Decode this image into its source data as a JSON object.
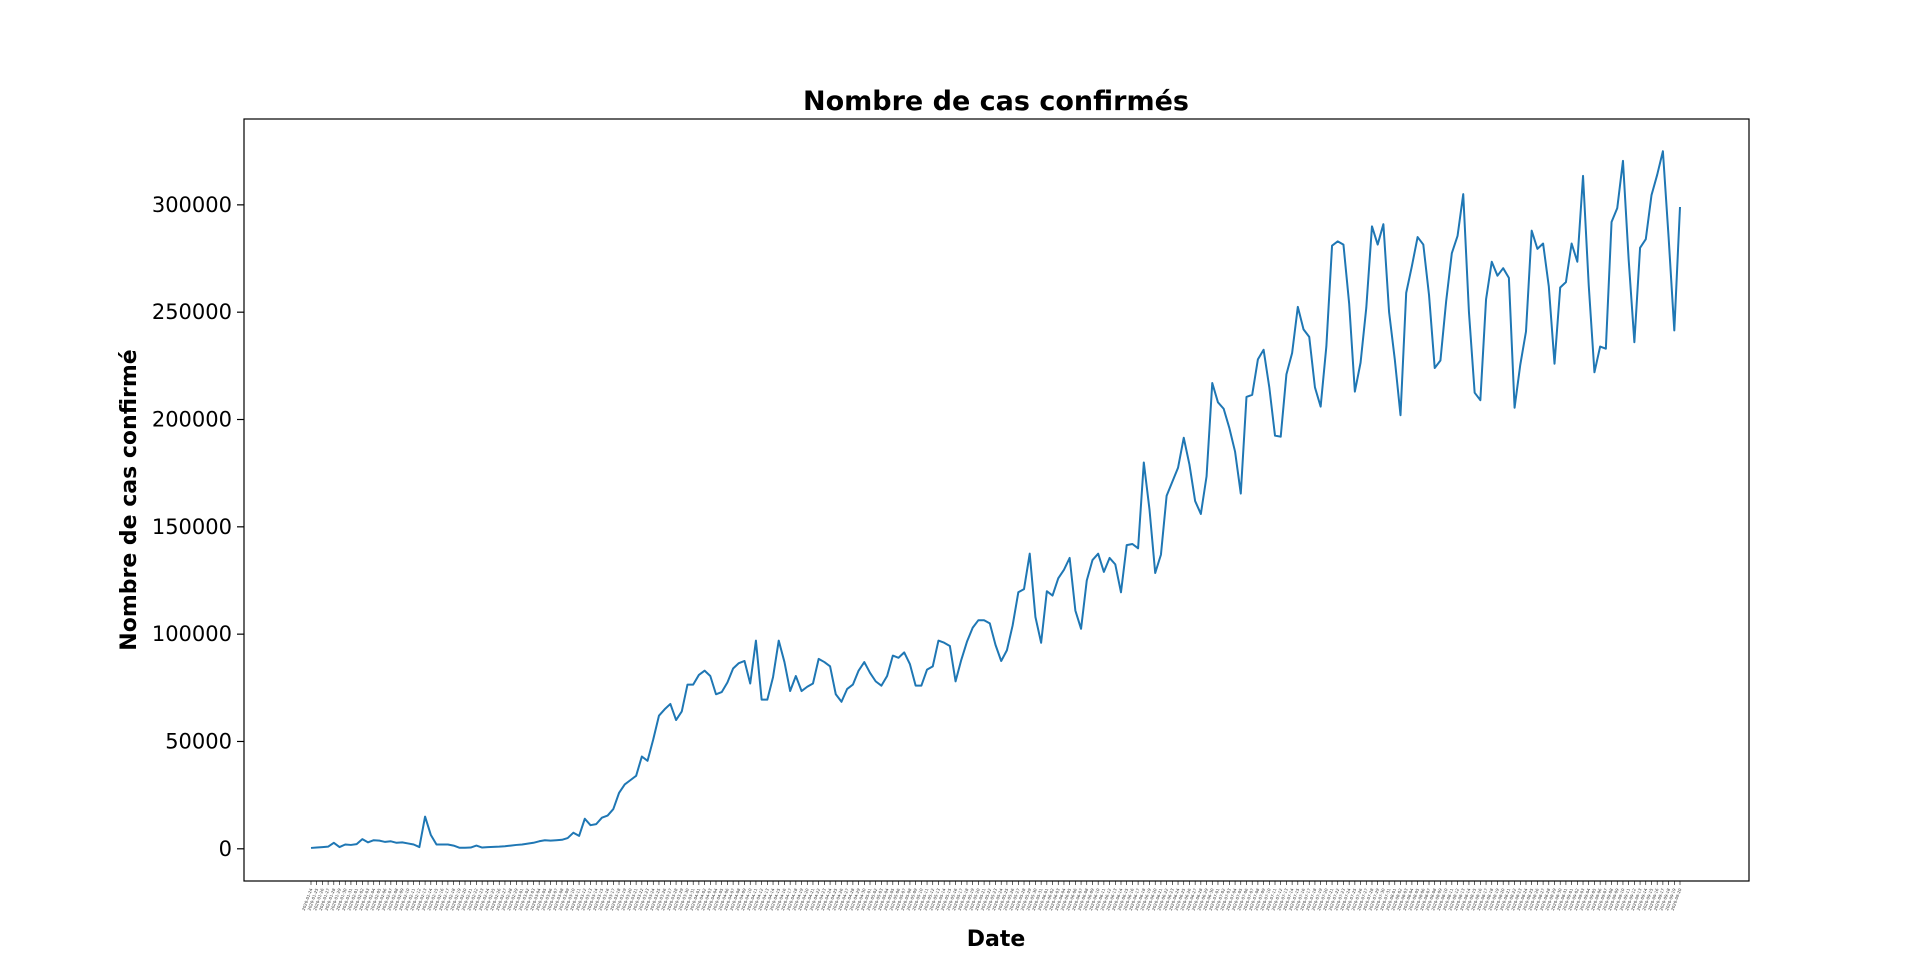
{
  "chart_data": {
    "type": "line",
    "title": "Nombre de cas confirmés",
    "xlabel": "Date",
    "ylabel": "Nombre de cas confirmé",
    "ylim": [
      -15000,
      340000
    ],
    "yticks": [
      0,
      50000,
      100000,
      150000,
      200000,
      250000,
      300000
    ],
    "grid": false,
    "line_color": "#1f77b4",
    "x_start_label": "2020-01-24",
    "x_end_label": "2020-12-18",
    "series": [
      {
        "values": [
          400,
          600,
          800,
          1000,
          2800,
          800,
          2000,
          1800,
          2200,
          4500,
          3000,
          4000,
          3800,
          3200,
          3500,
          2800,
          3000,
          2500,
          2000,
          800,
          15000,
          6500,
          2000,
          2000,
          2000,
          1500,
          500,
          500,
          600,
          1500,
          600,
          800,
          900,
          1000,
          1200,
          1500,
          1800,
          2000,
          2400,
          2800,
          3500,
          4000,
          3800,
          4000,
          4200,
          5000,
          7500,
          6000,
          14000,
          11000,
          11500,
          14500,
          15500,
          18500,
          26000,
          30000,
          32000,
          34000,
          43000,
          41000,
          51000,
          62000,
          65000,
          67500,
          60000,
          64000,
          76500,
          76500,
          81000,
          83000,
          80500,
          72000,
          73000,
          77500,
          84000,
          86500,
          87500,
          77000,
          97000,
          69500,
          69500,
          80000,
          97000,
          87000,
          73500,
          80500,
          73500,
          75500,
          77000,
          88500,
          87000,
          85000,
          72000,
          68500,
          74500,
          76500,
          83000,
          87000,
          82000,
          78000,
          76000,
          80500,
          90000,
          89000,
          91500,
          86000,
          76000,
          76000,
          83500,
          85000,
          97000,
          96000,
          94500,
          78000,
          88000,
          96500,
          103000,
          106500,
          106500,
          105000,
          95000,
          87500,
          92500,
          104000,
          119500,
          121000,
          137500,
          108000,
          96000,
          120000,
          118000,
          126000,
          130000,
          135500,
          111000,
          102500,
          125000,
          134500,
          137500,
          129000,
          135500,
          132500,
          119500,
          141500,
          142000,
          140000,
          180000,
          158000,
          128500,
          137000,
          164500,
          171000,
          177500,
          191500,
          179000,
          162000,
          156000,
          173500,
          217000,
          208000,
          205000,
          196000,
          185000,
          165500,
          210500,
          211500,
          228000,
          232500,
          215000,
          192500,
          192000,
          221000,
          231000,
          252500,
          242000,
          238500,
          215000,
          206000,
          234000,
          281000,
          283000,
          281500,
          254000,
          213000,
          226500,
          252000,
          290000,
          281500,
          291000,
          250000,
          228000,
          202000,
          259000,
          271500,
          285000,
          281500,
          258000,
          224000,
          227500,
          255000,
          277500,
          285500,
          305000,
          250000,
          212500,
          209000,
          256000,
          273500,
          267000,
          270500,
          266000,
          205500,
          225500,
          241000,
          288000,
          279500,
          282000,
          262000,
          226000,
          261500,
          264000,
          282000,
          273500,
          313500,
          262500,
          222000,
          234000,
          233000,
          292000,
          298500,
          320500,
          274500,
          236000,
          280000,
          284000,
          304500,
          314000,
          325000,
          285000,
          241500,
          299000
        ]
      }
    ]
  }
}
